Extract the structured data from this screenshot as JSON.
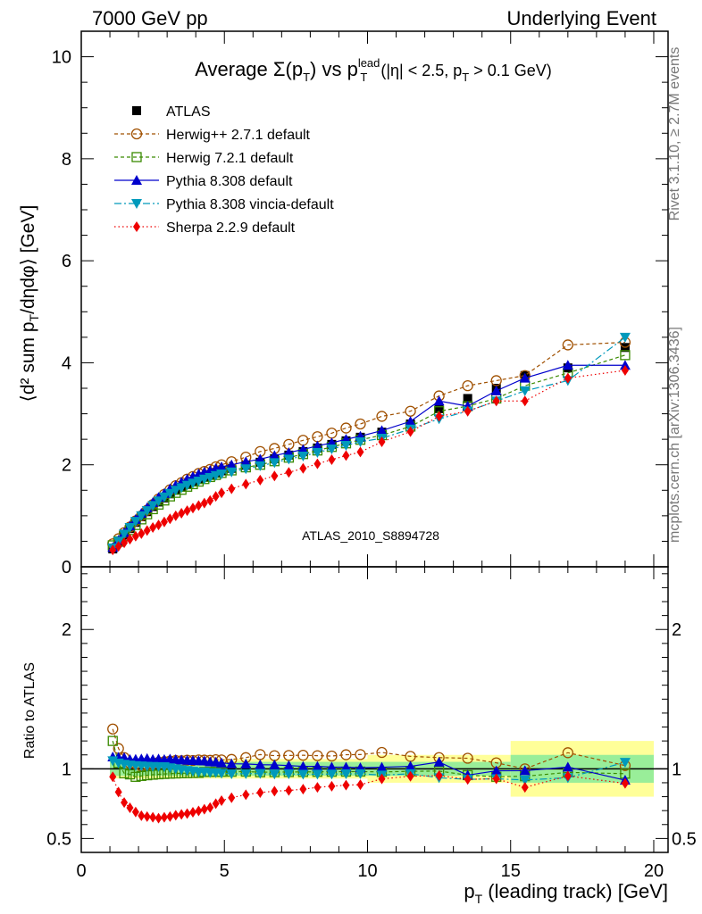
{
  "header": {
    "left": "7000 GeV pp",
    "right": "Underlying Event"
  },
  "side_labels": {
    "rivet": "Rivet 3.1.10, ≥ 2.7M events",
    "mcplots": "mcplots.cern.ch [arXiv:1306.3436]"
  },
  "chart_data": [
    {
      "type": "scatter",
      "title": "Average Σ(pT) vs pT^lead (|η| < 2.5, pT > 0.1 GeV)",
      "ylabel": "⟨d² sum pT/dηdφ⟩ [GeV]",
      "xlabel": "pT (leading track) [GeV]",
      "watermark": "ATLAS_2010_S8894728",
      "xlim": [
        0,
        20.5
      ],
      "ylim": [
        0,
        10.5
      ],
      "yticks": [
        "0",
        "2",
        "4",
        "6",
        "8",
        "10"
      ],
      "xticks": [
        "0",
        "5",
        "10",
        "15",
        "20"
      ],
      "legend_position": "top-left",
      "x": [
        1.1,
        1.3,
        1.5,
        1.7,
        1.9,
        2.1,
        2.3,
        2.5,
        2.7,
        2.9,
        3.1,
        3.3,
        3.5,
        3.7,
        3.9,
        4.1,
        4.3,
        4.5,
        4.7,
        4.9,
        5.25,
        5.75,
        6.25,
        6.75,
        7.25,
        7.75,
        8.25,
        8.75,
        9.25,
        9.75,
        10.5,
        11.5,
        12.5,
        13.5,
        14.5,
        15.5,
        17.0,
        19.0
      ],
      "series": [
        {
          "name": "ATLAS",
          "color": "#000000",
          "values": [
            0.35,
            0.48,
            0.62,
            0.75,
            0.87,
            0.98,
            1.08,
            1.18,
            1.27,
            1.35,
            1.43,
            1.5,
            1.56,
            1.62,
            1.67,
            1.72,
            1.76,
            1.8,
            1.84,
            1.88,
            1.93,
            1.99,
            2.05,
            2.12,
            2.19,
            2.26,
            2.33,
            2.4,
            2.47,
            2.54,
            2.64,
            2.8,
            3.1,
            3.3,
            3.5,
            3.75,
            3.9,
            4.3
          ]
        },
        {
          "name": "Herwig++ 2.7.1 default",
          "color": "#a05000",
          "values": [
            0.45,
            0.55,
            0.67,
            0.78,
            0.9,
            1.0,
            1.11,
            1.22,
            1.33,
            1.42,
            1.51,
            1.59,
            1.65,
            1.72,
            1.77,
            1.83,
            1.87,
            1.91,
            1.96,
            2.0,
            2.06,
            2.15,
            2.26,
            2.32,
            2.4,
            2.48,
            2.55,
            2.62,
            2.72,
            2.8,
            2.95,
            3.05,
            3.35,
            3.55,
            3.65,
            3.75,
            4.35,
            4.4
          ]
        },
        {
          "name": "Herwig 7.2.1 default",
          "color": "#3a8a00",
          "values": [
            0.42,
            0.5,
            0.6,
            0.72,
            0.82,
            0.93,
            1.03,
            1.13,
            1.22,
            1.3,
            1.38,
            1.45,
            1.51,
            1.57,
            1.62,
            1.67,
            1.72,
            1.76,
            1.8,
            1.84,
            1.89,
            1.95,
            2.0,
            2.07,
            2.14,
            2.21,
            2.28,
            2.35,
            2.42,
            2.49,
            2.58,
            2.75,
            3.05,
            3.15,
            3.3,
            3.55,
            3.8,
            4.15
          ]
        },
        {
          "name": "Pythia 8.308 default",
          "color": "#0000cc",
          "values": [
            0.38,
            0.52,
            0.67,
            0.8,
            0.93,
            1.05,
            1.16,
            1.26,
            1.36,
            1.44,
            1.53,
            1.6,
            1.66,
            1.72,
            1.77,
            1.82,
            1.86,
            1.89,
            1.93,
            1.96,
            2.0,
            2.06,
            2.11,
            2.18,
            2.24,
            2.3,
            2.37,
            2.43,
            2.5,
            2.56,
            2.67,
            2.85,
            3.25,
            3.15,
            3.45,
            3.7,
            3.95,
            3.95
          ]
        },
        {
          "name": "Pythia 8.308 vincia-default",
          "color": "#0099bb",
          "values": [
            0.37,
            0.5,
            0.64,
            0.77,
            0.89,
            1.0,
            1.1,
            1.2,
            1.29,
            1.37,
            1.44,
            1.5,
            1.55,
            1.6,
            1.64,
            1.68,
            1.72,
            1.75,
            1.79,
            1.82,
            1.86,
            1.92,
            1.98,
            2.04,
            2.11,
            2.17,
            2.24,
            2.31,
            2.38,
            2.45,
            2.52,
            2.7,
            2.9,
            3.05,
            3.25,
            3.45,
            3.65,
            4.5
          ]
        },
        {
          "name": "Sherpa 2.2.9 default",
          "color": "#ee0000",
          "values": [
            0.33,
            0.4,
            0.47,
            0.54,
            0.6,
            0.65,
            0.71,
            0.77,
            0.82,
            0.88,
            0.94,
            1.0,
            1.05,
            1.1,
            1.15,
            1.2,
            1.25,
            1.3,
            1.38,
            1.45,
            1.53,
            1.62,
            1.7,
            1.78,
            1.85,
            1.93,
            2.02,
            2.1,
            2.18,
            2.25,
            2.45,
            2.65,
            2.95,
            3.05,
            3.25,
            3.25,
            3.7,
            3.85
          ]
        }
      ]
    },
    {
      "type": "scatter",
      "ylabel": "Ratio to ATLAS",
      "xlabel": "pT (leading track) [GeV]",
      "xlim": [
        0,
        20.5
      ],
      "ylim": [
        0.4,
        2.45
      ],
      "yticks": [
        "0.5",
        "1",
        "2"
      ],
      "xticks": [
        "0",
        "5",
        "10",
        "15",
        "20"
      ]
    }
  ]
}
